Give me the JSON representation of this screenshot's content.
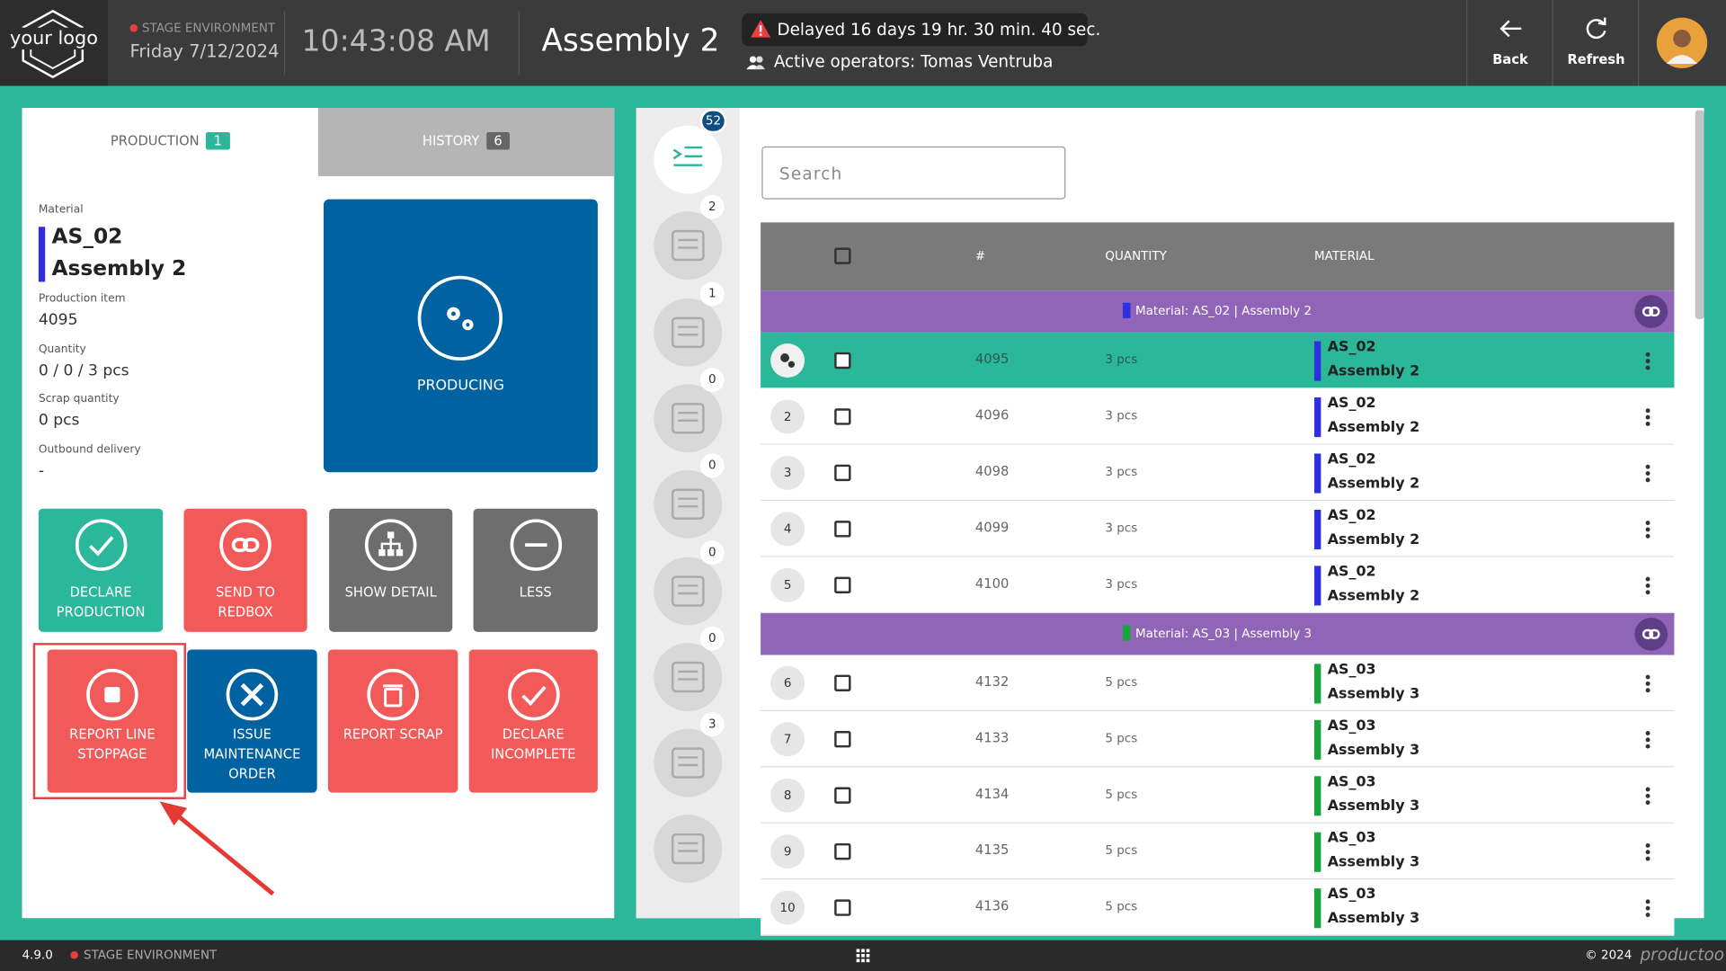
{
  "header": {
    "logo": "your logo",
    "environment": "STAGE ENVIRONMENT",
    "date": "Friday 7/12/2024",
    "time": "10:43:08 AM",
    "title": "Assembly 2",
    "delay": "Delayed 16 days 19 hr. 30 min. 40 sec.",
    "operators": "Active operators: Tomas Ventruba",
    "buttons": [
      "Back",
      "Refresh"
    ]
  },
  "tabs": [
    {
      "label": "PRODUCTION",
      "count": "1"
    },
    {
      "label": "HISTORY",
      "count": "6"
    }
  ],
  "details": {
    "material_label": "Material",
    "material_code": "AS_02",
    "material_name": "Assembly 2",
    "fields": [
      {
        "label": "Production item",
        "value": "4095"
      },
      {
        "label": "Quantity",
        "value": "0 / 0 / 3 pcs"
      },
      {
        "label": "Scrap quantity",
        "value": "0 pcs"
      },
      {
        "label": "Outbound delivery",
        "value": "-"
      }
    ]
  },
  "status": "PRODUCING",
  "actions": [
    {
      "label": "DECLARE PRODUCTION",
      "color": "#2bb79a"
    },
    {
      "label": "SEND TO REDBOX",
      "color": "#f25a5a"
    },
    {
      "label": "SHOW DETAIL",
      "color": "#6e6e6e"
    },
    {
      "label": "LESS",
      "color": "#6e6e6e"
    },
    {
      "label": "REPORT LINE STOPPAGE",
      "color": "#f25a5a"
    },
    {
      "label": "ISSUE MAINTENANCE ORDER",
      "color": "#0062a0"
    },
    {
      "label": "REPORT SCRAP",
      "color": "#f25a5a"
    },
    {
      "label": "DECLARE INCOMPLETE",
      "color": "#f25a5a"
    }
  ],
  "sidebar_badges": [
    "52",
    "2",
    "1",
    "0",
    "0",
    "0",
    "0",
    "3"
  ],
  "search_placeholder": "Search",
  "table": {
    "columns": [
      "#",
      "QUANTITY",
      "MATERIAL"
    ],
    "groups": [
      {
        "label": "Material: AS_02 | Assembly 2",
        "color": "#2f2fe0",
        "rows": [
          {
            "item": "4095",
            "quantity": "3 pcs",
            "code": "AS_02",
            "name": "Assembly 2"
          },
          {
            "index": "2",
            "item": "4096",
            "quantity": "3 pcs",
            "code": "AS_02",
            "name": "Assembly 2"
          },
          {
            "index": "3",
            "item": "4098",
            "quantity": "3 pcs",
            "code": "AS_02",
            "name": "Assembly 2"
          },
          {
            "index": "4",
            "item": "4099",
            "quantity": "3 pcs",
            "code": "AS_02",
            "name": "Assembly 2"
          },
          {
            "index": "5",
            "item": "4100",
            "quantity": "3 pcs",
            "code": "AS_02",
            "name": "Assembly 2"
          }
        ]
      },
      {
        "label": "Material: AS_03 | Assembly 3",
        "color": "#1aa33a",
        "rows": [
          {
            "index": "6",
            "item": "4132",
            "quantity": "5 pcs",
            "code": "AS_03",
            "name": "Assembly 3"
          },
          {
            "index": "7",
            "item": "4133",
            "quantity": "5 pcs",
            "code": "AS_03",
            "name": "Assembly 3"
          },
          {
            "index": "8",
            "item": "4134",
            "quantity": "5 pcs",
            "code": "AS_03",
            "name": "Assembly 3"
          },
          {
            "index": "9",
            "item": "4135",
            "quantity": "5 pcs",
            "code": "AS_03",
            "name": "Assembly 3"
          },
          {
            "index": "10",
            "item": "4136",
            "quantity": "5 pcs",
            "code": "AS_03",
            "name": "Assembly 3"
          }
        ]
      }
    ]
  },
  "footer": {
    "version": "4.9.0",
    "environment": "STAGE ENVIRONMENT",
    "copyright": "© 2024",
    "brand": "productoo"
  }
}
